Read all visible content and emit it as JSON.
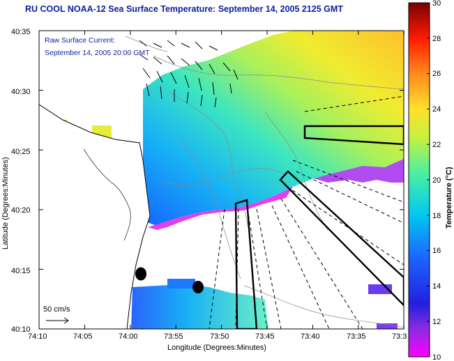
{
  "title": "RU COOL  NOAA-12  Sea Surface Temperature:  September 14, 2005 2125 GMT",
  "overlay": {
    "line1": "Raw Surface Current:",
    "line2": "September 14, 2005 20:00 GMT"
  },
  "scale": {
    "label": "50 cm/s"
  },
  "axes": {
    "x_label": "Longitude (Degrees:Minutes)",
    "y_label": "Latitude (Degrees:Minutes)",
    "x_ticks": [
      "74:10",
      "74:05",
      "74:00",
      "73:55",
      "73:50",
      "73:45",
      "73:40",
      "73:35",
      "73:3"
    ],
    "y_ticks": [
      "40:35",
      "40:30",
      "40:25",
      "40:20",
      "40:15",
      "40:10"
    ]
  },
  "colorbar": {
    "label": "Temperature (°C)",
    "ticks": [
      "30",
      "28",
      "26",
      "24",
      "22",
      "20",
      "18",
      "16",
      "14",
      "12",
      "10"
    ]
  }
}
